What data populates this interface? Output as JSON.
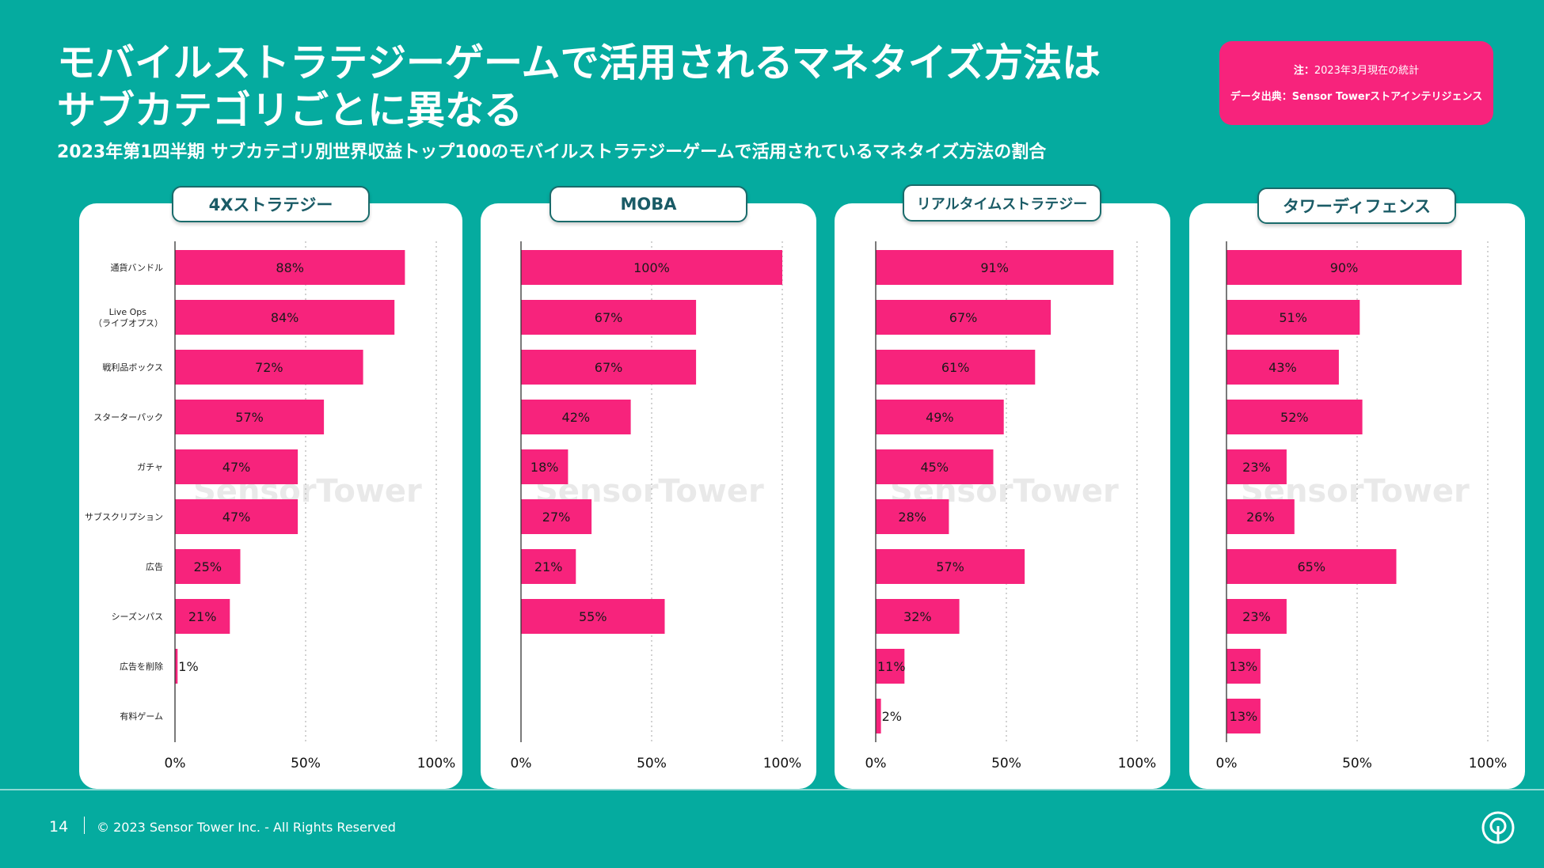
{
  "header": {
    "title_line1": "モバイルストラテジーゲームで活用されるマネタイズ方法は",
    "title_line2": "サブカテゴリごとに異なる",
    "subtitle": "2023年第1四半期 サブカテゴリ別世界収益トップ100のモバイルストラテジーゲームで活用されているマネタイズ方法の割合"
  },
  "note": {
    "line1_label": "注：",
    "line1_text": "2023年3月現在の統計",
    "line2_label": "データ出典：",
    "line2_text": "Sensor Towerストアインテリジェンス"
  },
  "watermark": "SensorTower",
  "footer": {
    "page_number": "14",
    "copyright": "© 2023 Sensor Tower Inc. - All Rights Reserved"
  },
  "colors": {
    "background": "#05ab9f",
    "bar": "#f7237c",
    "note_box": "#f7237c"
  },
  "chart_data": [
    {
      "type": "bar",
      "orientation": "horizontal",
      "title": "4Xストラテジー",
      "categories": [
        "通貨バンドル",
        "Live Ops\n（ライブオプス）",
        "戦利品ボックス",
        "スターターパック",
        "ガチャ",
        "サブスクリプション",
        "広告",
        "シーズンパス",
        "広告を削除",
        "有料ゲーム"
      ],
      "values": [
        88,
        84,
        72,
        57,
        47,
        47,
        25,
        21,
        1,
        null
      ],
      "xlim": [
        0,
        100
      ],
      "xticks": [
        "0%",
        "50%",
        "100%"
      ],
      "unit": "%"
    },
    {
      "type": "bar",
      "orientation": "horizontal",
      "title": "MOBA",
      "categories": [
        "通貨バンドル",
        "Live Ops\n（ライブオプス）",
        "戦利品ボックス",
        "スターターパック",
        "ガチャ",
        "サブスクリプション",
        "広告",
        "シーズンパス",
        "広告を削除",
        "有料ゲーム"
      ],
      "values": [
        100,
        67,
        67,
        42,
        18,
        27,
        21,
        55,
        null,
        null
      ],
      "xlim": [
        0,
        100
      ],
      "xticks": [
        "0%",
        "50%",
        "100%"
      ],
      "unit": "%"
    },
    {
      "type": "bar",
      "orientation": "horizontal",
      "title": "リアルタイムストラテジー",
      "categories": [
        "通貨バンドル",
        "Live Ops\n（ライブオプス）",
        "戦利品ボックス",
        "スターターパック",
        "ガチャ",
        "サブスクリプション",
        "広告",
        "シーズンパス",
        "広告を削除",
        "有料ゲーム"
      ],
      "values": [
        91,
        67,
        61,
        49,
        45,
        28,
        57,
        32,
        11,
        2
      ],
      "xlim": [
        0,
        100
      ],
      "xticks": [
        "0%",
        "50%",
        "100%"
      ],
      "unit": "%"
    },
    {
      "type": "bar",
      "orientation": "horizontal",
      "title": "タワーディフェンス",
      "categories": [
        "通貨バンドル",
        "Live Ops\n（ライブオプス）",
        "戦利品ボックス",
        "スターターパック",
        "ガチャ",
        "サブスクリプション",
        "広告",
        "シーズンパス",
        "広告を削除",
        "有料ゲーム"
      ],
      "values": [
        90,
        51,
        43,
        52,
        23,
        26,
        65,
        23,
        13,
        13
      ],
      "xlim": [
        0,
        100
      ],
      "xticks": [
        "0%",
        "50%",
        "100%"
      ],
      "unit": "%"
    }
  ]
}
